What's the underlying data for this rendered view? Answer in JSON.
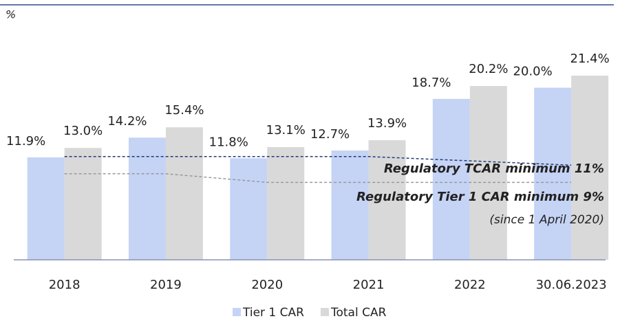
{
  "chart_data": {
    "type": "bar",
    "unit_label": "%",
    "categories": [
      "2018",
      "2019",
      "2020",
      "2021",
      "2022",
      "30.06.2023"
    ],
    "series": [
      {
        "name": "Tier 1 CAR",
        "color": "#c5d3f5",
        "values": [
          11.9,
          14.2,
          11.8,
          12.7,
          18.7,
          20.0
        ],
        "value_labels": [
          "11.9%",
          "14.2%",
          "11.8%",
          "12.7%",
          "18.7%",
          "20.0%"
        ]
      },
      {
        "name": "Total CAR",
        "color": "#d9d9d9",
        "values": [
          13.0,
          15.4,
          13.1,
          13.9,
          20.2,
          21.4
        ],
        "value_labels": [
          "13.0%",
          "15.4%",
          "13.1%",
          "13.9%",
          "20.2%",
          "21.4%"
        ]
      }
    ],
    "reference_lines": [
      {
        "color": "#1f3a7a",
        "values": [
          12,
          12,
          12,
          12,
          11.5,
          11
        ]
      },
      {
        "color": "#999999",
        "values": [
          10,
          10,
          9,
          9,
          9,
          9
        ]
      }
    ],
    "annotations": [
      {
        "text": "Regulatory TCAR minimum 11%",
        "color": "#404040"
      },
      {
        "text": "Regulatory Tier 1 CAR minimum 9%",
        "color": "#1f3a96"
      },
      {
        "text": "(since 1 April 2020)",
        "color": "#7f7f7f"
      }
    ]
  }
}
